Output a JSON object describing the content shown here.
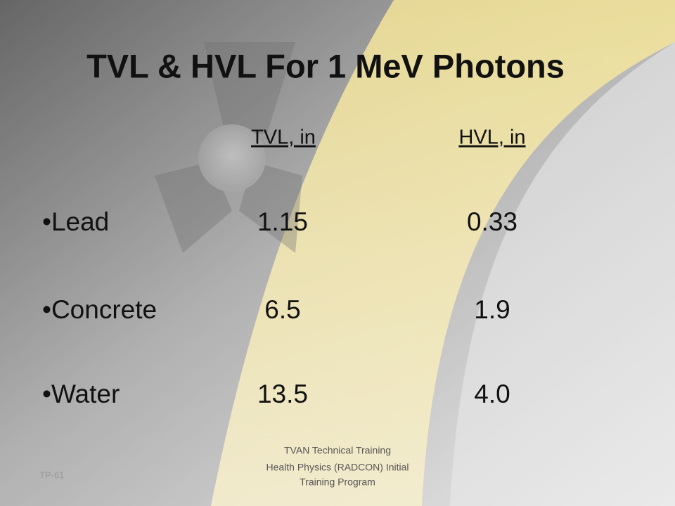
{
  "slide": {
    "title": "TVL & HVL For 1 MeV Photons",
    "table": {
      "headers": [
        "TVL, in",
        "HVL, in"
      ],
      "rows": [
        [
          "•Lead",
          "1.15",
          "0.33"
        ],
        [
          "•Concrete",
          "6.5",
          "1.9"
        ],
        [
          "•Water",
          "13.5",
          "4.0"
        ]
      ]
    },
    "footer": {
      "slide_number": "TP-61",
      "lines": [
        "TVAN Technical Training",
        "Health Physics (RADCON) Initial",
        "Training Program"
      ]
    }
  }
}
